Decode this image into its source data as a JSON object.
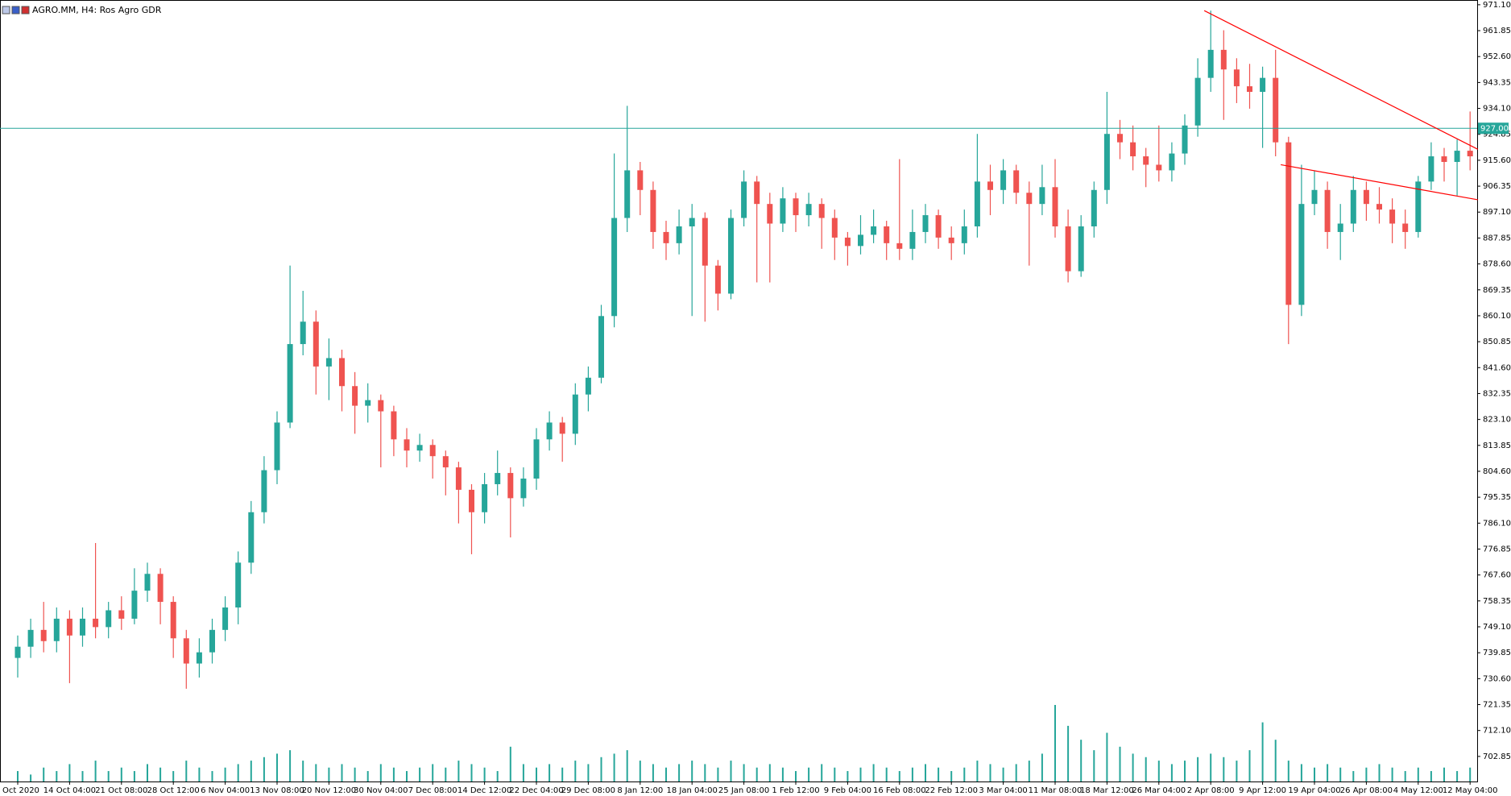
{
  "chart_data": {
    "type": "candlestick",
    "title": "AGRO.MM, H4:  Ros Agro GDR",
    "bull_color": "#26a69a",
    "bear_color": "#ef5350",
    "ylim": [
      693.9,
      972.5
    ],
    "yticks": [
      {
        "value": 971.1,
        "label": "971.10"
      },
      {
        "value": 961.85,
        "label": "961.85"
      },
      {
        "value": 952.6,
        "label": "952.60"
      },
      {
        "value": 943.35,
        "label": "943.35"
      },
      {
        "value": 934.1,
        "label": "934.10"
      },
      {
        "value": 924.85,
        "label": "924.85"
      },
      {
        "value": 915.6,
        "label": "915.60"
      },
      {
        "value": 906.35,
        "label": "906.35"
      },
      {
        "value": 897.1,
        "label": "897.10"
      },
      {
        "value": 887.85,
        "label": "887.85"
      },
      {
        "value": 878.6,
        "label": "878.60"
      },
      {
        "value": 869.35,
        "label": "869.35"
      },
      {
        "value": 860.1,
        "label": "860.10"
      },
      {
        "value": 850.85,
        "label": "850.85"
      },
      {
        "value": 841.6,
        "label": "841.60"
      },
      {
        "value": 832.35,
        "label": "832.35"
      },
      {
        "value": 823.1,
        "label": "823.10"
      },
      {
        "value": 813.85,
        "label": "813.85"
      },
      {
        "value": 804.6,
        "label": "804.60"
      },
      {
        "value": 795.35,
        "label": "795.35"
      },
      {
        "value": 786.1,
        "label": "786.10"
      },
      {
        "value": 776.85,
        "label": "776.85"
      },
      {
        "value": 767.6,
        "label": "767.60"
      },
      {
        "value": 758.35,
        "label": "758.35"
      },
      {
        "value": 749.1,
        "label": "749.10"
      },
      {
        "value": 739.85,
        "label": "739.85"
      },
      {
        "value": 730.6,
        "label": "730.60"
      },
      {
        "value": 721.35,
        "label": "721.35"
      },
      {
        "value": 712.1,
        "label": "712.10"
      },
      {
        "value": 702.85,
        "label": "702.85"
      }
    ],
    "categories": [
      "Oct 2020",
      null,
      null,
      null,
      "14 Oct 04:00",
      null,
      null,
      null,
      "21 Oct 08:00",
      null,
      null,
      null,
      "28 Oct 12:00",
      null,
      null,
      null,
      "6 Nov 04:00",
      null,
      null,
      null,
      "13 Nov 08:00",
      null,
      null,
      null,
      "20 Nov 12:00",
      null,
      null,
      null,
      "30 Nov 04:00",
      null,
      null,
      null,
      "7 Dec 08:00",
      null,
      null,
      null,
      "14 Dec 12:00",
      null,
      null,
      null,
      "22 Dec 04:00",
      null,
      null,
      null,
      "29 Dec 08:00",
      null,
      null,
      null,
      "8 Jan 12:00",
      null,
      null,
      null,
      "18 Jan 04:00",
      null,
      null,
      null,
      "25 Jan 08:00",
      null,
      null,
      null,
      "1 Feb 12:00",
      null,
      null,
      null,
      "9 Feb 04:00",
      null,
      null,
      null,
      "16 Feb 08:00",
      null,
      null,
      null,
      "22 Feb 12:00",
      null,
      null,
      null,
      "3 Mar 04:00",
      null,
      null,
      null,
      "11 Mar 08:00",
      null,
      null,
      null,
      "18 Mar 12:00",
      null,
      null,
      null,
      "26 Mar 04:00",
      null,
      null,
      null,
      "2 Apr 08:00",
      null,
      null,
      null,
      "9 Apr 12:00",
      null,
      null,
      null,
      "19 Apr 04:00",
      null,
      null,
      null,
      "26 Apr 08:00",
      null,
      null,
      null,
      "4 May 12:00",
      null,
      null,
      null,
      "12 May 04:00"
    ],
    "candles": [
      [
        738,
        746,
        731,
        742
      ],
      [
        742,
        752,
        738,
        748
      ],
      [
        748,
        758,
        740,
        744
      ],
      [
        744,
        756,
        740,
        752
      ],
      [
        752,
        755,
        729,
        746
      ],
      [
        746,
        756,
        742,
        752
      ],
      [
        752,
        779,
        745,
        749
      ],
      [
        749,
        758,
        745,
        755
      ],
      [
        755,
        760,
        748,
        752
      ],
      [
        752,
        770,
        750,
        762
      ],
      [
        762,
        772,
        758,
        768
      ],
      [
        768,
        770,
        750,
        758
      ],
      [
        758,
        760,
        738,
        745
      ],
      [
        745,
        748,
        727,
        736
      ],
      [
        736,
        745,
        731,
        740
      ],
      [
        740,
        752,
        736,
        748
      ],
      [
        748,
        760,
        744,
        756
      ],
      [
        756,
        776,
        750,
        772
      ],
      [
        772,
        794,
        768,
        790
      ],
      [
        790,
        810,
        786,
        805
      ],
      [
        805,
        826,
        800,
        822
      ],
      [
        822,
        878,
        820,
        850
      ],
      [
        850,
        869,
        846,
        858
      ],
      [
        858,
        862,
        832,
        842
      ],
      [
        842,
        852,
        830,
        845
      ],
      [
        845,
        848,
        826,
        835
      ],
      [
        835,
        840,
        818,
        828
      ],
      [
        828,
        836,
        822,
        830
      ],
      [
        830,
        832,
        806,
        826
      ],
      [
        826,
        828,
        810,
        816
      ],
      [
        816,
        820,
        806,
        812
      ],
      [
        812,
        818,
        808,
        814
      ],
      [
        814,
        816,
        802,
        810
      ],
      [
        810,
        812,
        796,
        806
      ],
      [
        806,
        808,
        786,
        798
      ],
      [
        798,
        800,
        775,
        790
      ],
      [
        790,
        804,
        786,
        800
      ],
      [
        800,
        812,
        796,
        804
      ],
      [
        804,
        806,
        781,
        795
      ],
      [
        795,
        806,
        792,
        802
      ],
      [
        802,
        820,
        798,
        816
      ],
      [
        816,
        826,
        812,
        822
      ],
      [
        822,
        824,
        808,
        818
      ],
      [
        818,
        836,
        814,
        832
      ],
      [
        832,
        842,
        826,
        838
      ],
      [
        838,
        864,
        836,
        860
      ],
      [
        860,
        918,
        856,
        895
      ],
      [
        895,
        935,
        890,
        912
      ],
      [
        912,
        915,
        896,
        905
      ],
      [
        905,
        908,
        884,
        890
      ],
      [
        890,
        894,
        880,
        886
      ],
      [
        886,
        898,
        882,
        892
      ],
      [
        892,
        900,
        860,
        895
      ],
      [
        895,
        897,
        858,
        878
      ],
      [
        878,
        880,
        862,
        868
      ],
      [
        868,
        898,
        866,
        895
      ],
      [
        895,
        912,
        892,
        908
      ],
      [
        908,
        910,
        872,
        900
      ],
      [
        900,
        904,
        872,
        893
      ],
      [
        893,
        906,
        890,
        902
      ],
      [
        902,
        904,
        890,
        896
      ],
      [
        896,
        904,
        892,
        900
      ],
      [
        900,
        902,
        884,
        895
      ],
      [
        895,
        898,
        880,
        888
      ],
      [
        888,
        890,
        878,
        885
      ],
      [
        885,
        896,
        882,
        889
      ],
      [
        889,
        898,
        886,
        892
      ],
      [
        892,
        894,
        880,
        886
      ],
      [
        886,
        916,
        880,
        884
      ],
      [
        884,
        898,
        880,
        890
      ],
      [
        890,
        900,
        886,
        896
      ],
      [
        896,
        898,
        884,
        888
      ],
      [
        888,
        892,
        880,
        886
      ],
      [
        886,
        898,
        882,
        892
      ],
      [
        892,
        925,
        888,
        908
      ],
      [
        908,
        914,
        896,
        905
      ],
      [
        905,
        916,
        900,
        912
      ],
      [
        912,
        914,
        900,
        904
      ],
      [
        904,
        908,
        878,
        900
      ],
      [
        900,
        914,
        896,
        906
      ],
      [
        906,
        916,
        888,
        892
      ],
      [
        892,
        898,
        872,
        876
      ],
      [
        876,
        896,
        874,
        892
      ],
      [
        892,
        908,
        888,
        905
      ],
      [
        905,
        940,
        900,
        925
      ],
      [
        925,
        930,
        916,
        922
      ],
      [
        922,
        928,
        912,
        917
      ],
      [
        917,
        920,
        906,
        914
      ],
      [
        914,
        928,
        908,
        912
      ],
      [
        912,
        922,
        908,
        918
      ],
      [
        918,
        932,
        914,
        928
      ],
      [
        928,
        952,
        924,
        945
      ],
      [
        945,
        969,
        940,
        955
      ],
      [
        955,
        962,
        930,
        948
      ],
      [
        948,
        952,
        936,
        942
      ],
      [
        942,
        950,
        934,
        940
      ],
      [
        940,
        949,
        920,
        945
      ],
      [
        945,
        955,
        917,
        922
      ],
      [
        922,
        924,
        850,
        864
      ],
      [
        864,
        914,
        860,
        900
      ],
      [
        900,
        912,
        896,
        905
      ],
      [
        905,
        908,
        884,
        890
      ],
      [
        890,
        900,
        880,
        893
      ],
      [
        893,
        910,
        890,
        905
      ],
      [
        905,
        908,
        894,
        900
      ],
      [
        900,
        906,
        893,
        898
      ],
      [
        898,
        902,
        886,
        893
      ],
      [
        893,
        898,
        884,
        890
      ],
      [
        890,
        910,
        888,
        908
      ],
      [
        908,
        922,
        905,
        917
      ],
      [
        917,
        920,
        908,
        915
      ],
      [
        915,
        923,
        903,
        919
      ],
      [
        919,
        933,
        912,
        917
      ]
    ],
    "volume": [
      3,
      2,
      4,
      3,
      5,
      3,
      6,
      3,
      4,
      3,
      5,
      4,
      3,
      6,
      4,
      3,
      4,
      5,
      6,
      7,
      8,
      9,
      6,
      5,
      4,
      5,
      4,
      3,
      5,
      4,
      3,
      4,
      5,
      4,
      6,
      5,
      4,
      3,
      10,
      5,
      4,
      5,
      4,
      6,
      5,
      7,
      8,
      9,
      6,
      5,
      4,
      5,
      6,
      5,
      4,
      6,
      5,
      4,
      5,
      4,
      3,
      4,
      5,
      4,
      3,
      4,
      5,
      4,
      3,
      4,
      5,
      4,
      3,
      4,
      6,
      5,
      4,
      5,
      6,
      8,
      22,
      16,
      12,
      9,
      14,
      10,
      8,
      7,
      6,
      5,
      6,
      7,
      8,
      7,
      6,
      9,
      17,
      12,
      6,
      5,
      4,
      5,
      4,
      3,
      4,
      5,
      4,
      3,
      4,
      3,
      4,
      3,
      4
    ],
    "price_line": {
      "value": 927,
      "label": "927.00"
    },
    "trendlines": [
      {
        "color": "#ff0000",
        "points": [
          [
            91.5,
            969
          ],
          [
            112.6,
            919.5
          ]
        ]
      },
      {
        "color": "#ff0000",
        "points": [
          [
            97.4,
            914
          ],
          [
            112.6,
            901.5
          ]
        ]
      }
    ]
  }
}
